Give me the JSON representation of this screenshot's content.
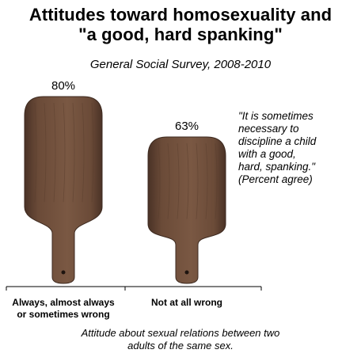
{
  "title_lines": [
    "Attitudes toward homosexuality and",
    "\"a good, hard spanking\""
  ],
  "subtitle": "General Social Survey, 2008-2010",
  "annotation_lines": [
    "\"It is sometimes",
    "necessary to",
    "discipline a child",
    "with a good,",
    "hard, spanking.\"",
    "(Percent agree)"
  ],
  "xlabel_lines": [
    "Attitude about sexual relations between two",
    "adults of the same sex."
  ],
  "chart_data": {
    "type": "bar",
    "marker": "paddle",
    "title": "Attitudes toward homosexuality and \"a good, hard spanking\"",
    "subtitle": "General Social Survey, 2008-2010",
    "categories": [
      [
        "Always, almost always",
        "or sometimes wrong"
      ],
      [
        "Not at all wrong"
      ]
    ],
    "values": [
      80,
      63
    ],
    "value_labels": [
      "80%",
      "63%"
    ],
    "ylim": [
      0,
      80
    ],
    "grid": false,
    "colors": {
      "wood": "#6b4b38",
      "wood_dark": "#4a3226",
      "axis": "#000000"
    }
  }
}
